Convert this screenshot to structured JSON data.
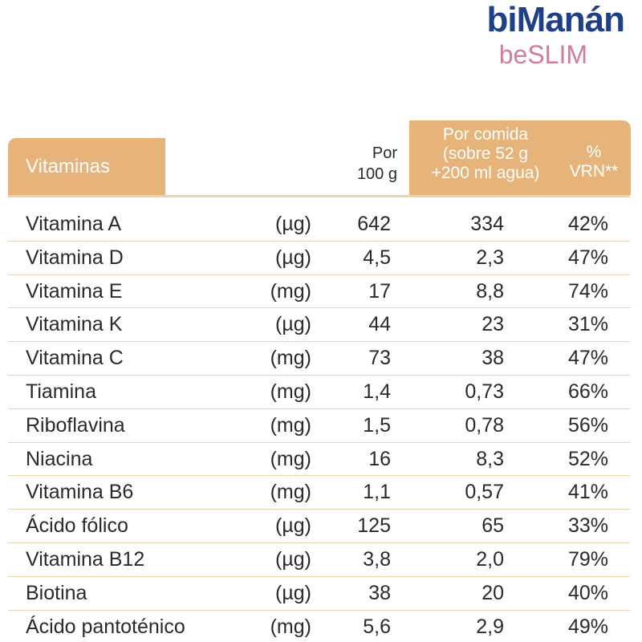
{
  "brand": {
    "name": "biManán",
    "line": "beSLIM"
  },
  "header": {
    "title": "Vitaminas",
    "per100": [
      "Por",
      "100 g"
    ],
    "per_meal": [
      "Por comida",
      "(sobre 52 g",
      "+200 ml agua)"
    ],
    "vrn": [
      "%",
      "VRN**"
    ]
  },
  "table": {
    "rows": [
      [
        "Vitamina A",
        "(µg)",
        "642",
        "334",
        "42%"
      ],
      [
        "Vitamina D",
        "(µg)",
        "4,5",
        "2,3",
        "47%"
      ],
      [
        "Vitamina E",
        "(mg)",
        "17",
        "8,8",
        "74%"
      ],
      [
        "Vitamina K",
        "(µg)",
        "44",
        "23",
        "31%"
      ],
      [
        "Vitamina C",
        "(mg)",
        "73",
        "38",
        "47%"
      ],
      [
        "Tiamina",
        "(mg)",
        "1,4",
        "0,73",
        "66%"
      ],
      [
        "Riboflavina",
        "(mg)",
        "1,5",
        "0,78",
        "56%"
      ],
      [
        "Niacina",
        "(mg)",
        "16",
        "8,3",
        "52%"
      ],
      [
        "Vitamina B6",
        "(mg)",
        "1,1",
        "0,57",
        "41%"
      ],
      [
        "Ácido fólico",
        "(µg)",
        "125",
        "65",
        "33%"
      ],
      [
        "Vitamina B12",
        "(µg)",
        "3,8",
        "2,0",
        "79%"
      ],
      [
        "Biotina",
        "(µg)",
        "38",
        "20",
        "40%"
      ],
      [
        "Ácido pantoténico",
        "(mg)",
        "5,6",
        "2,9",
        "49%"
      ]
    ]
  }
}
